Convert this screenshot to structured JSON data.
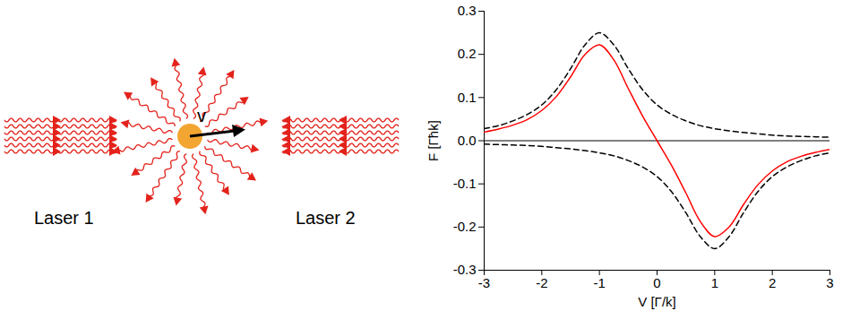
{
  "diagram": {
    "labels": {
      "laser_1": "Laser 1",
      "laser_2": "Laser 2",
      "velocity": "v"
    }
  },
  "chart_data": {
    "type": "line",
    "x_label": "V [Γ/k]",
    "y_label": "F [Γħk]",
    "x": [
      -3,
      -2.75,
      -2.5,
      -2.25,
      -2,
      -1.75,
      -1.5,
      -1.25,
      -1,
      -0.75,
      -0.5,
      -0.25,
      0,
      0.25,
      0.5,
      0.75,
      1,
      1.25,
      1.5,
      1.75,
      2,
      2.25,
      2.5,
      2.75,
      3
    ],
    "series": [
      {
        "color": "black",
        "line_style": "dashed",
        "values": [
          0.028,
          0.035,
          0.046,
          0.061,
          0.083,
          0.118,
          0.167,
          0.222,
          0.25,
          0.222,
          0.167,
          0.118,
          0.083,
          0.061,
          0.046,
          0.035,
          0.028,
          0.023,
          0.019,
          0.016,
          0.013,
          0.011,
          0.01,
          0.009,
          0.008
        ]
      },
      {
        "color": "black",
        "line_style": "dashed",
        "values": [
          -0.008,
          -0.009,
          -0.01,
          -0.011,
          -0.013,
          -0.016,
          -0.019,
          -0.023,
          -0.028,
          -0.035,
          -0.046,
          -0.061,
          -0.083,
          -0.118,
          -0.167,
          -0.222,
          -0.25,
          -0.222,
          -0.167,
          -0.118,
          -0.083,
          -0.061,
          -0.046,
          -0.035,
          -0.028
        ]
      },
      {
        "color": "red",
        "line_style": "solid",
        "values": [
          0.02,
          0.027,
          0.036,
          0.049,
          0.07,
          0.102,
          0.148,
          0.2,
          0.222,
          0.187,
          0.121,
          0.057,
          0,
          -0.057,
          -0.121,
          -0.187,
          -0.222,
          -0.2,
          -0.148,
          -0.102,
          -0.07,
          -0.049,
          -0.036,
          -0.027,
          -0.02
        ]
      }
    ],
    "xlim": [
      -3,
      3
    ],
    "xticks": [
      -3,
      -2,
      -1,
      0,
      1,
      2,
      3
    ],
    "ylim": [
      -0.3,
      0.3
    ],
    "yticks": [
      -0.3,
      -0.2,
      -0.1,
      {
        "value": 0,
        "label": "0.0"
      },
      0.1,
      0.2,
      0.3
    ],
    "reference_lines": {
      "y": [
        0
      ]
    },
    "grid": false
  }
}
